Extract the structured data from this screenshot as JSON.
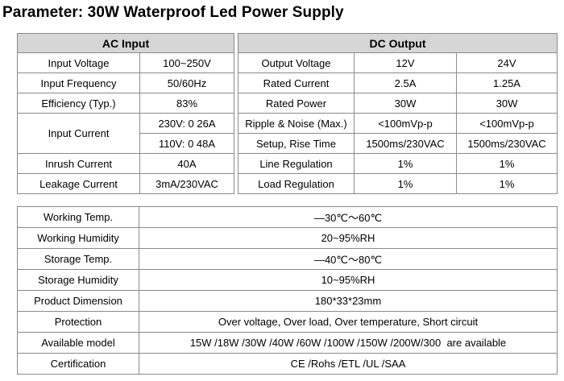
{
  "title": "Parameter: 30W Waterproof Led Power Supply",
  "ac": {
    "header": "AC Input",
    "rows": [
      {
        "label": "Input Voltage",
        "value": "100~250V"
      },
      {
        "label": "Input Frequency",
        "value": "50/60Hz"
      },
      {
        "label": "Efficiency (Typ.)",
        "value": "83%"
      },
      {
        "label": "Input Current",
        "values": [
          "230V: 0 26A",
          "110V: 0 48A"
        ]
      },
      {
        "label": "Inrush Current",
        "value": "40A"
      },
      {
        "label": "Leakage Current",
        "value": "3mA/230VAC"
      }
    ]
  },
  "dc": {
    "header": "DC Output",
    "rows": [
      {
        "label": "Output Voltage",
        "v12": "12V",
        "v24": "24V"
      },
      {
        "label": "Rated Current",
        "v12": "2.5A",
        "v24": "1.25A"
      },
      {
        "label": "Rated Power",
        "v12": "30W",
        "v24": "30W"
      },
      {
        "label": "Ripple & Noise (Max.)",
        "v12": "<100mVp-p",
        "v24": "<100mVp-p"
      },
      {
        "label": "Setup, Rise Time",
        "v12": "1500ms/230VAC",
        "v24": "1500ms/230VAC"
      },
      {
        "label": "Line Regulation",
        "v12": "1%",
        "v24": "1%"
      },
      {
        "label": "Load Regulation",
        "v12": "1%",
        "v24": "1%"
      }
    ]
  },
  "general": [
    {
      "label": "Working Temp.",
      "value": "—30℃～60℃"
    },
    {
      "label": "Working Humidity",
      "value": "20~95%RH"
    },
    {
      "label": "Storage Temp.",
      "value": "—40℃～80℃"
    },
    {
      "label": "Storage Humidity",
      "value": "10~95%RH"
    },
    {
      "label": "Product Dimension",
      "value": "180*33*23mm"
    },
    {
      "label": "Protection",
      "value": "Over voltage, Over load, Over temperature, Short circuit"
    },
    {
      "label": "Available model",
      "value": "15W /18W /30W /40W /60W /100W /150W /200W/300  are available"
    },
    {
      "label": "Certification",
      "value": "CE /Rohs /ETL /UL /SAA"
    }
  ]
}
